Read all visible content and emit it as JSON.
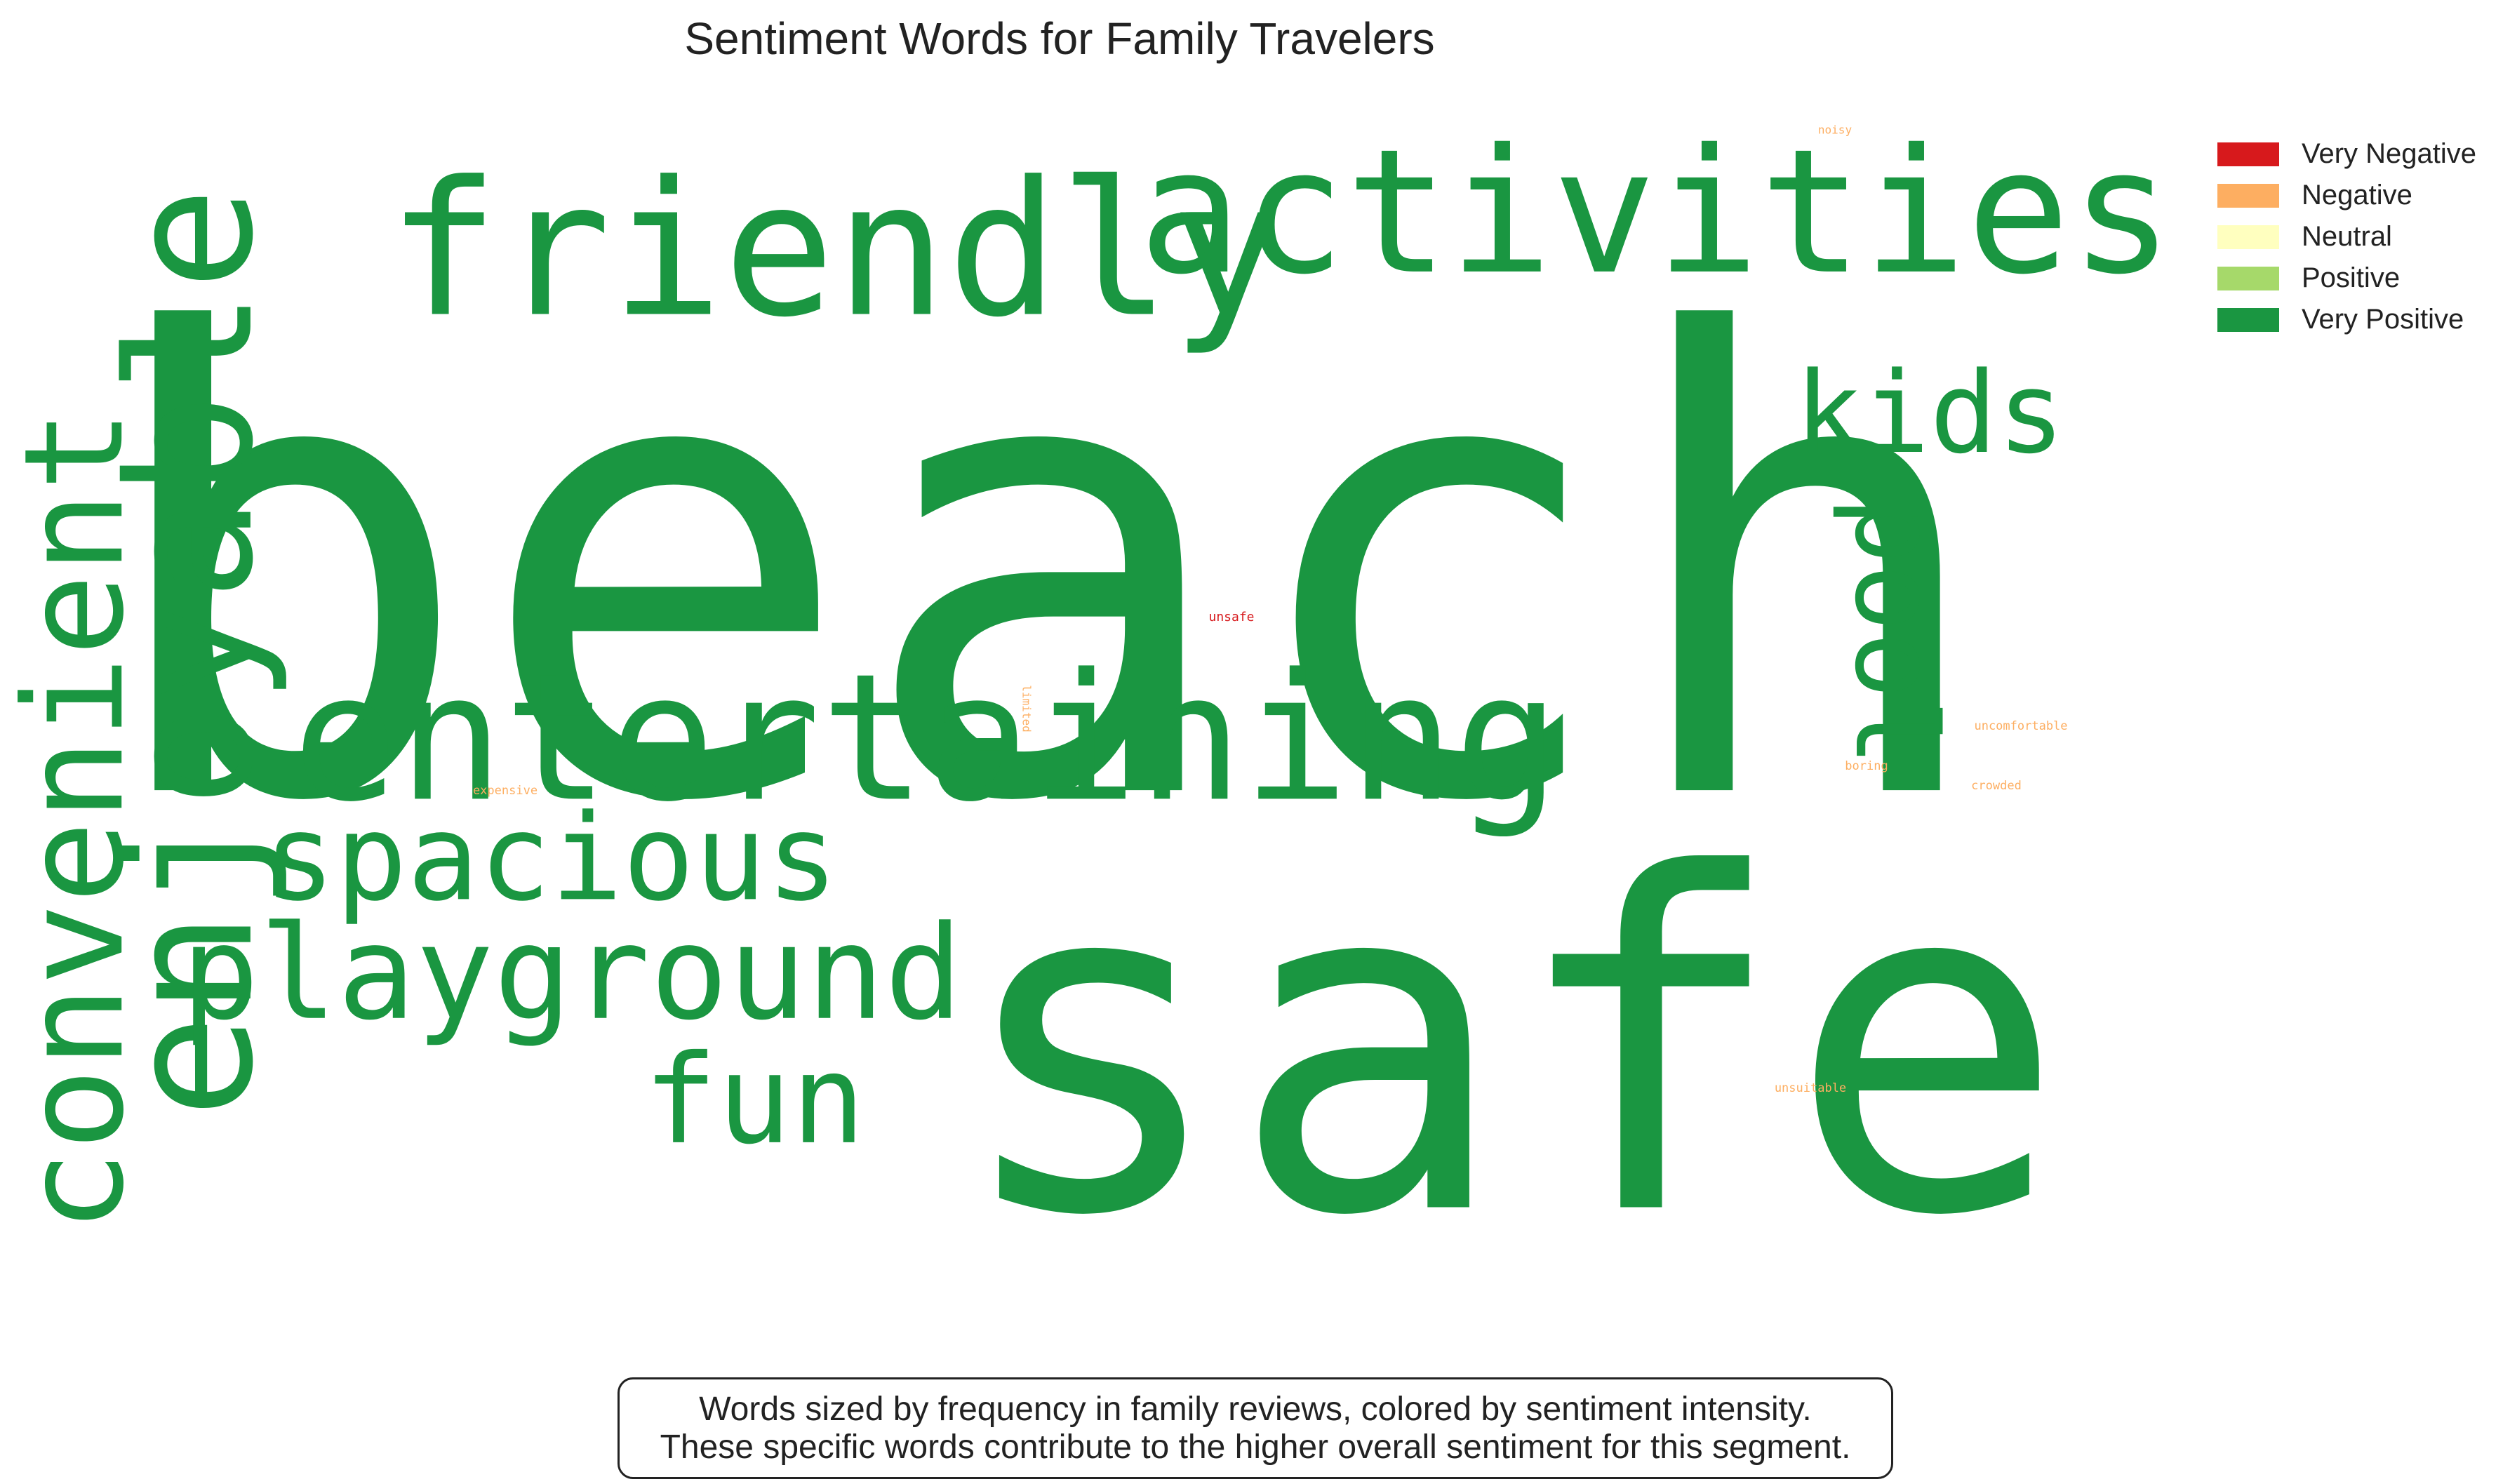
{
  "chart_data": {
    "type": "wordcloud",
    "title": "Sentiment Words for Family Travelers",
    "colors": {
      "Very Negative": "#d7191c",
      "Negative": "#fdae61",
      "Neutral": "#ffffbf",
      "Positive": "#a6d96a",
      "Very Positive": "#1a9641"
    },
    "legend": {
      "placement": "top-right",
      "entries": [
        "Very Negative",
        "Negative",
        "Neutral",
        "Positive",
        "Very Positive"
      ]
    },
    "words": [
      {
        "text": "beach",
        "sentiment": "Very Positive",
        "weight": 100
      },
      {
        "text": "safe",
        "sentiment": "Very Positive",
        "weight": 90
      },
      {
        "text": "enjoyable",
        "sentiment": "Very Positive",
        "weight": 42
      },
      {
        "text": "entertaining",
        "sentiment": "Very Positive",
        "weight": 34
      },
      {
        "text": "friendly",
        "sentiment": "Very Positive",
        "weight": 34
      },
      {
        "text": "activities",
        "sentiment": "Very Positive",
        "weight": 30
      },
      {
        "text": "convenient",
        "sentiment": "Very Positive",
        "weight": 24
      },
      {
        "text": "playground",
        "sentiment": "Very Positive",
        "weight": 24
      },
      {
        "text": "spacious",
        "sentiment": "Very Positive",
        "weight": 22
      },
      {
        "text": "fun",
        "sentiment": "Very Positive",
        "weight": 22
      },
      {
        "text": "pool",
        "sentiment": "Very Positive",
        "weight": 20
      },
      {
        "text": "kids",
        "sentiment": "Very Positive",
        "weight": 20
      },
      {
        "text": "unsafe",
        "sentiment": "Very Negative",
        "weight": 1
      },
      {
        "text": "limited",
        "sentiment": "Negative",
        "weight": 1
      },
      {
        "text": "uncomfortable",
        "sentiment": "Negative",
        "weight": 1
      },
      {
        "text": "boring",
        "sentiment": "Negative",
        "weight": 1
      },
      {
        "text": "crowded",
        "sentiment": "Negative",
        "weight": 1
      },
      {
        "text": "expensive",
        "sentiment": "Negative",
        "weight": 1
      },
      {
        "text": "unsuitable",
        "sentiment": "Negative",
        "weight": 1
      },
      {
        "text": "noisy",
        "sentiment": "Negative",
        "weight": 1
      }
    ]
  },
  "caption": {
    "line1": "Words sized by frequency in family reviews, colored by sentiment intensity.",
    "line2": "These specific words contribute to the higher overall sentiment for this segment."
  }
}
